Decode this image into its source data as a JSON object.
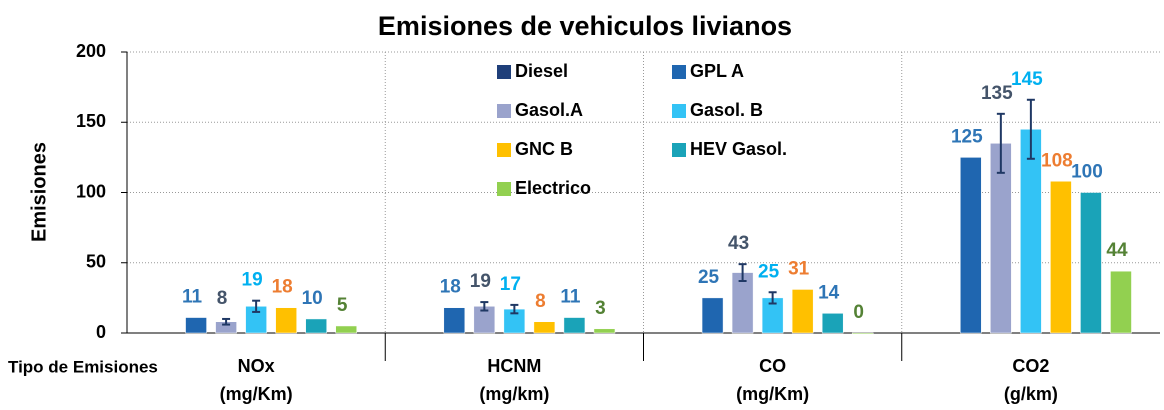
{
  "chart_data": {
    "type": "bar",
    "title": "Emisiones de vehiculos livianos",
    "xlabel": "Tipo de Emisiones",
    "ylabel": "Emisiones",
    "categories": [
      "NOx",
      "HCNM",
      "CO",
      "CO2"
    ],
    "units": [
      "(mg/Km)",
      "(mg/km)",
      "(mg/Km)",
      "(g/km)"
    ],
    "series": [
      {
        "name": "Diesel",
        "color": "#1f3f7a",
        "label_color": "#1f3f7a",
        "values": [
          null,
          null,
          null,
          null
        ],
        "errors": [
          null,
          null,
          null,
          null
        ]
      },
      {
        "name": "GPL A",
        "color": "#1f66b0",
        "label_color": "#2e75b6",
        "values": [
          11,
          18,
          25,
          125
        ],
        "errors": [
          null,
          null,
          null,
          null
        ]
      },
      {
        "name": "Gasol.A",
        "color": "#9aa3cc",
        "label_color": "#44546a",
        "values": [
          8,
          19,
          43,
          135
        ],
        "errors": [
          2,
          3,
          6,
          21
        ]
      },
      {
        "name": "Gasol. B",
        "color": "#33c3f5",
        "label_color": "#00b0f0",
        "values": [
          19,
          17,
          25,
          145
        ],
        "errors": [
          4,
          3,
          4,
          21
        ]
      },
      {
        "name": "GNC B",
        "color": "#ffc000",
        "label_color": "#ed7d31",
        "values": [
          18,
          8,
          31,
          108
        ],
        "errors": [
          null,
          null,
          null,
          null
        ]
      },
      {
        "name": "HEV Gasol.",
        "color": "#1aa3b8",
        "label_color": "#2e75b6",
        "values": [
          10,
          11,
          14,
          100
        ],
        "errors": [
          null,
          null,
          null,
          null
        ]
      },
      {
        "name": "Electrico",
        "color": "#92d050",
        "label_color": "#548235",
        "values": [
          5,
          3,
          0,
          44
        ],
        "errors": [
          null,
          null,
          null,
          null
        ]
      }
    ],
    "ylim": [
      0,
      200
    ],
    "yticks": [
      0,
      50,
      100,
      150,
      200
    ],
    "grid": true,
    "legend": "upper center"
  }
}
